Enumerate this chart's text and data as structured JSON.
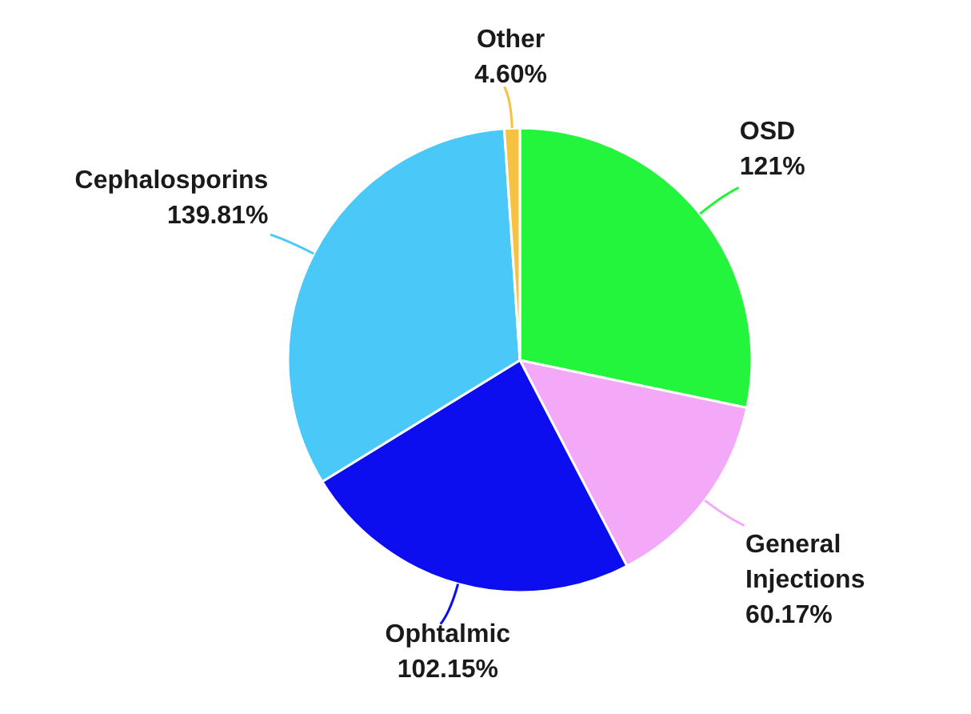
{
  "chart_data": {
    "type": "pie",
    "categories": [
      "OSD",
      "General Injections",
      "Ophtalmic",
      "Cephalosporins",
      "Other"
    ],
    "values": [
      121,
      60.17,
      102.15,
      139.81,
      4.6
    ],
    "value_labels": [
      "121%",
      "60.17%",
      "102.15%",
      "139.81%",
      "4.60%"
    ],
    "colors": [
      "#22f53c",
      "#f4a8f8",
      "#0c0ef0",
      "#4ac8f8",
      "#f5c242"
    ],
    "legend": false
  }
}
